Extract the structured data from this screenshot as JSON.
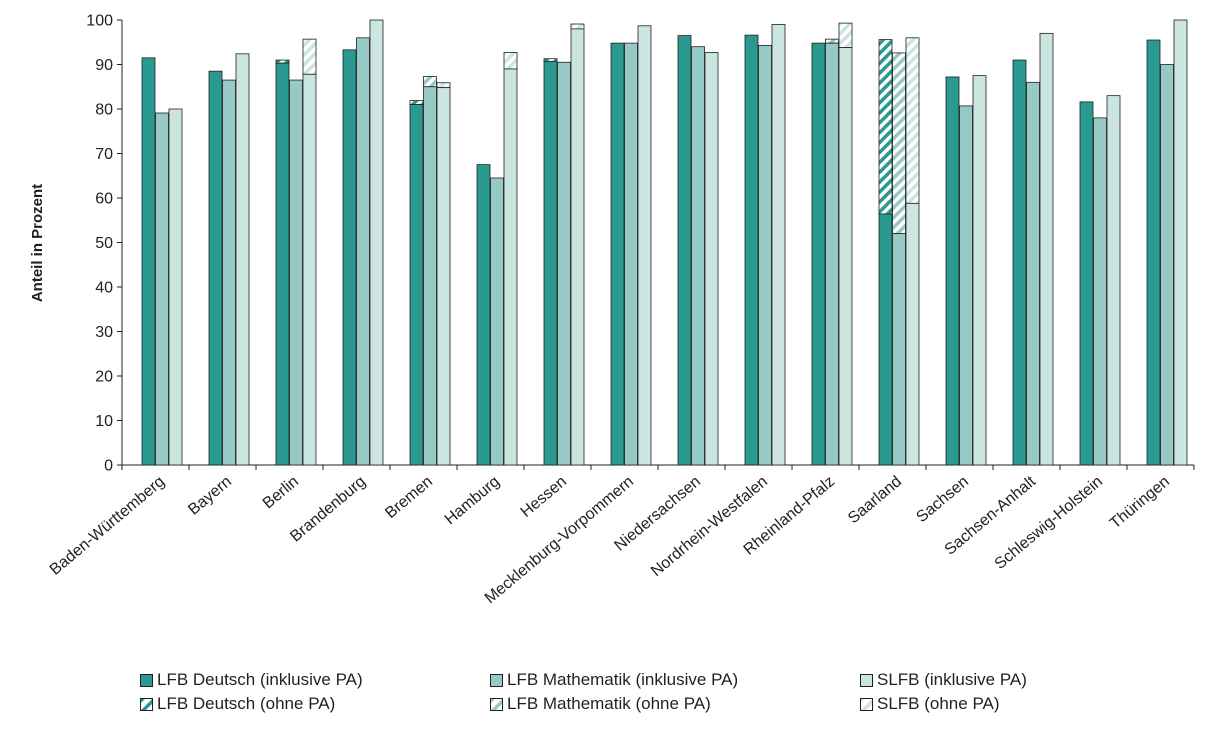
{
  "chart_data": {
    "type": "bar",
    "ylabel": "Anteil in Prozent",
    "ylim": [
      0,
      100
    ],
    "yticks": [
      "0",
      "10",
      "20",
      "30",
      "40",
      "50",
      "60",
      "70",
      "80",
      "90",
      "100"
    ],
    "categories": [
      "Baden-Württemberg",
      "Bayern",
      "Berlin",
      "Brandenburg",
      "Bremen",
      "Hamburg",
      "Hessen",
      "Mecklenburg-Vorpommern",
      "Niedersachsen",
      "Nordrhein-Westfalen",
      "Rheinland-Pfalz",
      "Saarland",
      "Sachsen",
      "Sachsen-Anhalt",
      "Schleswig-Holstein",
      "Thüringen"
    ],
    "series": [
      {
        "name": "LFB Deutsch (inklusive PA)",
        "color": "#2a9a91",
        "values": [
          91.5,
          88.5,
          90.3,
          93.3,
          81.0,
          67.5,
          90.7,
          94.8,
          96.5,
          96.6,
          94.8,
          56.4,
          87.2,
          91.0,
          81.6,
          95.5
        ]
      },
      {
        "name": "LFB Mathematik (inklusive PA)",
        "color": "#98cac5",
        "values": [
          79.1,
          86.5,
          86.5,
          96.0,
          85.0,
          64.5,
          90.5,
          94.8,
          94.0,
          94.3,
          94.8,
          52.0,
          80.7,
          86.0,
          78.0,
          90.0
        ]
      },
      {
        "name": "SLFB (inklusive PA)",
        "color": "#cbe5e1",
        "values": [
          80.0,
          92.4,
          87.8,
          100.0,
          84.8,
          89.0,
          98.0,
          98.7,
          92.7,
          99.0,
          93.8,
          58.8,
          87.5,
          97.0,
          83.0,
          100.0
        ]
      },
      {
        "name": "LFB Deutsch (ohne PA)",
        "color": "#2a9a91",
        "values": [
          91.5,
          88.5,
          91.0,
          93.3,
          81.9,
          67.5,
          91.3,
          94.8,
          96.5,
          96.6,
          94.8,
          95.6,
          87.2,
          91.0,
          81.6,
          95.5
        ]
      },
      {
        "name": "LFB Mathematik (ohne PA)",
        "color": "#98cac5",
        "values": [
          79.1,
          86.5,
          86.5,
          96.0,
          87.3,
          64.5,
          90.5,
          94.8,
          94.0,
          94.3,
          95.7,
          92.6,
          80.7,
          86.0,
          78.0,
          90.0
        ]
      },
      {
        "name": "SLFB (ohne PA)",
        "color": "#cbe5e1",
        "values": [
          80.0,
          92.4,
          95.7,
          100.0,
          85.9,
          92.7,
          99.1,
          98.7,
          92.7,
          99.0,
          99.3,
          96.0,
          87.5,
          97.0,
          83.0,
          100.0
        ]
      }
    ],
    "legend": [
      "LFB Deutsch (inklusive PA)",
      "LFB Mathematik (inklusive PA)",
      "SLFB (inklusive PA)",
      "LFB Deutsch (ohne PA)",
      "LFB Mathematik (ohne PA)",
      "SLFB (ohne PA)"
    ],
    "legend_position": "bottom",
    "grid": false
  }
}
